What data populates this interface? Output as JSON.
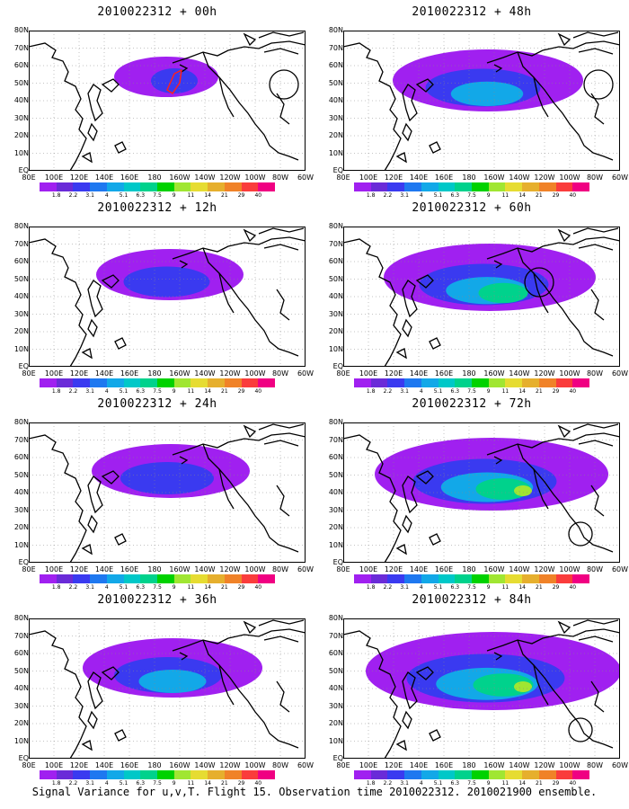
{
  "panels": [
    {
      "title": "2010022312 + 00h",
      "intensity": 0.15,
      "circle": "east",
      "red_contour": true
    },
    {
      "title": "2010022312 + 48h",
      "intensity": 0.55,
      "circle": "east",
      "red_contour": false
    },
    {
      "title": "2010022312 + 12h",
      "intensity": 0.35,
      "circle": "none",
      "red_contour": false
    },
    {
      "title": "2010022312 + 60h",
      "intensity": 0.65,
      "circle": "west",
      "red_contour": false
    },
    {
      "title": "2010022312 + 24h",
      "intensity": 0.4,
      "circle": "none",
      "red_contour": false
    },
    {
      "title": "2010022312 + 72h",
      "intensity": 0.75,
      "circle": "south",
      "red_contour": false
    },
    {
      "title": "2010022312 + 36h",
      "intensity": 0.5,
      "circle": "none",
      "red_contour": false
    },
    {
      "title": "2010022312 + 84h",
      "intensity": 0.85,
      "circle": "south",
      "red_contour": false
    }
  ],
  "lat_labels": [
    "80N",
    "70N",
    "60N",
    "50N",
    "40N",
    "30N",
    "20N",
    "10N",
    "EQ"
  ],
  "lon_labels": [
    "80E",
    "100E",
    "120E",
    "140E",
    "160E",
    "180",
    "160W",
    "140W",
    "120W",
    "100W",
    "80W",
    "60W"
  ],
  "colorbar": {
    "labels": [
      "1.8",
      "2.2",
      "3.1",
      "4",
      "5.1",
      "6.3",
      "7.5",
      "9",
      "11",
      "14",
      "21",
      "29",
      "40"
    ],
    "colors": [
      "#a020f0",
      "#6a2bd8",
      "#3a3af0",
      "#1e78f0",
      "#12a8e8",
      "#00c8c8",
      "#00d28c",
      "#00d200",
      "#a0e632",
      "#e6dc32",
      "#e6af2d",
      "#f08228",
      "#fa3c3c",
      "#f00082"
    ]
  },
  "caption": "Signal Variance for u,v,T. Flight 15. Observation time 2010022312. 2010021900 ensemble."
}
